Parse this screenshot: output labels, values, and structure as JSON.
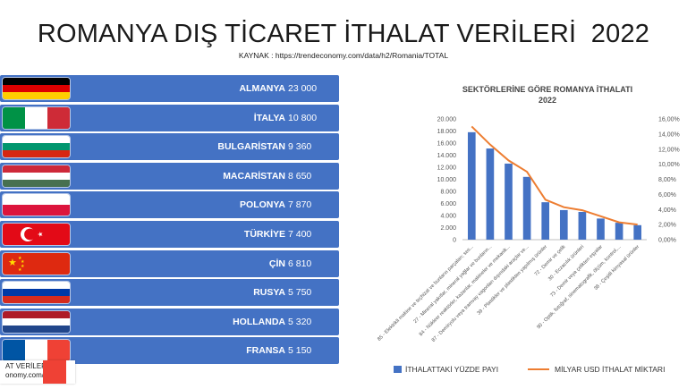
{
  "page": {
    "title": "ROMANYA DIŞ TİCARET İTHALAT VERİLERİ  2022",
    "source": "KAYNAK : https://trendeconomy.com/data/h2/Romania/TOTAL"
  },
  "countries": [
    {
      "name": "ALMANYA",
      "value": "23 000",
      "flag": "germany-flag-icon"
    },
    {
      "name": "İTALYA",
      "value": "10 800",
      "flag": "italy-flag-icon"
    },
    {
      "name": "BULGARİSTAN",
      "value": "9 360",
      "flag": "bulgaria-flag-icon"
    },
    {
      "name": "MACARİSTAN",
      "value": "8 650",
      "flag": "hungary-flag-icon"
    },
    {
      "name": "POLONYA",
      "value": "7 870",
      "flag": "poland-flag-icon"
    },
    {
      "name": "TÜRKİYE",
      "value": "7 400",
      "flag": "turkey-flag-icon"
    },
    {
      "name": "ÇİN",
      "value": "6 810",
      "flag": "china-flag-icon"
    },
    {
      "name": "RUSYA",
      "value": "5 750",
      "flag": "russia-flag-icon"
    },
    {
      "name": "HOLLANDA",
      "value": "5 320",
      "flag": "netherlands-flag-icon"
    },
    {
      "name": "FRANSA",
      "value": "5 150",
      "flag": "france-flag-icon"
    }
  ],
  "overlay": {
    "line1": "AT VERİLERİ",
    "line2": "onomy.com/"
  },
  "colors": {
    "bar": "#4472c4",
    "line": "#ed7d31",
    "row": "#4472c4"
  },
  "chart_data": {
    "type": "bar",
    "title": [
      "SEKTÖRLERİNE GÖRE ROMANYA İTHALATI",
      "2022"
    ],
    "categories": [
      "85 - Elektrikli makine ve teçhizat ve bunların parçaları; ses...",
      "27 - Mineral yakıtlar, mineral yağlar ve bunların...",
      "84 - Nükleer reaktörler, kazanlar, makineler ve mekanik...",
      "87 - Demiryolu veya tramvay vagonları dışındaki araçlar ve...",
      "39 - Plastikler ve plastikten yapılmış ürünler",
      "72 - Demir ve çelik",
      "30 - Eczacılık ürünleri",
      "73 - Demir veya çelikten eşyalar",
      "90 - Optik, fotoğraf, sinematografik, ölçüm, kontrol,...",
      "38 - Çeşitli kimyasal ürünler"
    ],
    "series": [
      {
        "name": "İTHALATTAKİ YÜZDE PAYI",
        "type": "bar",
        "axis": "left",
        "values": [
          17800,
          15100,
          12600,
          10400,
          6200,
          4900,
          4600,
          3500,
          2800,
          2400
        ]
      },
      {
        "name": "MİLYAR USD İTHALAT MİKTARI",
        "type": "line",
        "axis": "right",
        "values": [
          15.0,
          12.6,
          10.5,
          9.0,
          5.3,
          4.3,
          3.9,
          3.1,
          2.3,
          2.0
        ]
      }
    ],
    "y_left": {
      "range": [
        0,
        20000
      ],
      "ticks": [
        "0",
        "2.000",
        "4.000",
        "6.000",
        "8.000",
        "10.000",
        "12.000",
        "14.000",
        "16.000",
        "18.000",
        "20.000"
      ]
    },
    "y_right": {
      "range": [
        0,
        16
      ],
      "ticks": [
        "0,00%",
        "2,00%",
        "4,00%",
        "6,00%",
        "8,00%",
        "10,00%",
        "12,00%",
        "14,00%",
        "16,00%"
      ]
    },
    "legend_position": "bottom",
    "grid": false
  }
}
